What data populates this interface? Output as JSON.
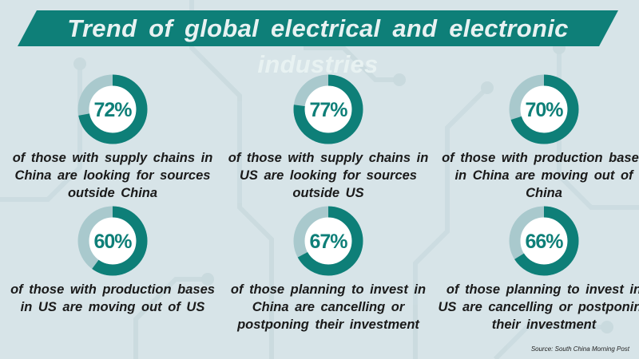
{
  "title": "Trend of global electrical and electronic industries",
  "colors": {
    "accent": "#0e7f78",
    "track": "#a9c9cd",
    "background": "#d7e4e8"
  },
  "chart_data": [
    {
      "type": "pie",
      "variant": "donut",
      "value": 72,
      "label": "72%",
      "description": "of those with supply chains in China are looking for sources outside China"
    },
    {
      "type": "pie",
      "variant": "donut",
      "value": 77,
      "label": "77%",
      "description": "of those with supply chains in US are looking for sources outside US"
    },
    {
      "type": "pie",
      "variant": "donut",
      "value": 70,
      "label": "70%",
      "description": "of those with production bases in China are moving out of China"
    },
    {
      "type": "pie",
      "variant": "donut",
      "value": 60,
      "label": "60%",
      "description": "of those with production bases in US are moving out of US"
    },
    {
      "type": "pie",
      "variant": "donut",
      "value": 67,
      "label": "67%",
      "description": "of those planning to invest in China are cancelling or postponing their investment"
    },
    {
      "type": "pie",
      "variant": "donut",
      "value": 66,
      "label": "66%",
      "description": "of those planning to invest in US are cancelling or postponing their investment"
    }
  ],
  "source": "Source: South China Morning Post"
}
